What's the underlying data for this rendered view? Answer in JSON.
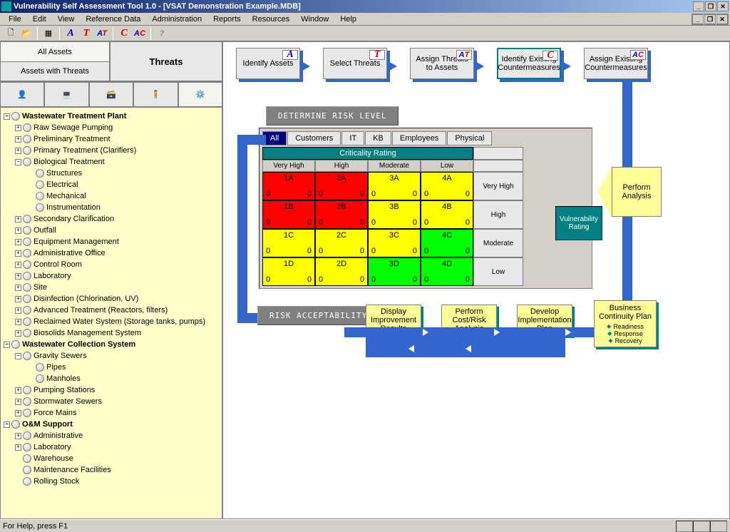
{
  "title": "Vulnerability Self Assessment Tool 1.0 - [VSAT Demonstration Example.MDB]",
  "menu": [
    "File",
    "Edit",
    "View",
    "Reference Data",
    "Administration",
    "Reports",
    "Resources",
    "Window",
    "Help"
  ],
  "toolbar_letters": [
    "A",
    "T",
    "AT",
    "C",
    "AC"
  ],
  "left_tabs": {
    "all_assets": "All Assets",
    "assets_with_threats": "Assets with Threats",
    "threats": "Threats"
  },
  "tree": [
    {
      "l": 0,
      "exp": "−",
      "bold": true,
      "t": "Wastewater Treatment Plant"
    },
    {
      "l": 1,
      "exp": "+",
      "t": "Raw Sewage Pumping"
    },
    {
      "l": 1,
      "exp": "+",
      "t": "Preliminary Treatment"
    },
    {
      "l": 1,
      "exp": "+",
      "t": "Primary Treatment (Clarifiers)"
    },
    {
      "l": 1,
      "exp": "−",
      "t": "Biological Treatment"
    },
    {
      "l": 2,
      "exp": "",
      "t": "Structures"
    },
    {
      "l": 2,
      "exp": "",
      "t": "Electrical"
    },
    {
      "l": 2,
      "exp": "",
      "t": "Mechanical"
    },
    {
      "l": 2,
      "exp": "",
      "t": "Instrumentation"
    },
    {
      "l": 1,
      "exp": "+",
      "t": "Secondary Clarification"
    },
    {
      "l": 1,
      "exp": "+",
      "t": "Outfall"
    },
    {
      "l": 1,
      "exp": "+",
      "t": "Equipment Management"
    },
    {
      "l": 1,
      "exp": "+",
      "t": "Administrative Office"
    },
    {
      "l": 1,
      "exp": "+",
      "t": "Control Room"
    },
    {
      "l": 1,
      "exp": "+",
      "t": "Laboratory"
    },
    {
      "l": 1,
      "exp": "+",
      "t": "Site"
    },
    {
      "l": 1,
      "exp": "+",
      "t": "Disinfection (Chlorination, UV)"
    },
    {
      "l": 1,
      "exp": "+",
      "t": "Advanced Treatment (Reactors, filters)"
    },
    {
      "l": 1,
      "exp": "+",
      "t": "Reclaimed Water System (Storage tanks, pumps)"
    },
    {
      "l": 1,
      "exp": "+",
      "t": "Biosolids Management System"
    },
    {
      "l": 0,
      "exp": "−",
      "bold": true,
      "t": "Wastewater Collection System"
    },
    {
      "l": 1,
      "exp": "−",
      "t": "Gravity Sewers"
    },
    {
      "l": 2,
      "exp": "",
      "t": "Pipes"
    },
    {
      "l": 2,
      "exp": "",
      "t": "Manholes"
    },
    {
      "l": 1,
      "exp": "+",
      "t": "Pumping Stations"
    },
    {
      "l": 1,
      "exp": "+",
      "t": "Stormwater Sewers"
    },
    {
      "l": 1,
      "exp": "+",
      "t": "Force Mains"
    },
    {
      "l": 0,
      "exp": "−",
      "bold": true,
      "t": "O&M Support"
    },
    {
      "l": 1,
      "exp": "+",
      "t": "Administrative"
    },
    {
      "l": 1,
      "exp": "+",
      "t": "Laboratory"
    },
    {
      "l": 1,
      "exp": "",
      "t": "Warehouse"
    },
    {
      "l": 1,
      "exp": "",
      "t": "Maintenance Facilities"
    },
    {
      "l": 1,
      "exp": "",
      "t": "Rolling Stock"
    }
  ],
  "workflow": {
    "steps": [
      {
        "label": "Identify Assets",
        "badge": "A",
        "bcls": "letter-a"
      },
      {
        "label": "Select Threats",
        "badge": "T",
        "bcls": "letter-t"
      },
      {
        "label": "Assign Threats to Assets",
        "badge": "AT",
        "bcls": "letter-at"
      },
      {
        "label": "Identify Existing Countermeasures",
        "badge": "C",
        "bcls": "letter-c",
        "selected": true
      },
      {
        "label": "Assign Existing Countermeasures",
        "badge": "AC",
        "bcls": "letter-ac"
      }
    ],
    "btn_determine": "DETERMINE RISK LEVEL",
    "btn_accept": "RISK ACCEPTABILITY",
    "vuln": "Vulnerability Rating",
    "perform": "Perform Analysis"
  },
  "matrix": {
    "tabs": [
      "All",
      "Customers",
      "IT",
      "KB",
      "Employees",
      "Physical"
    ],
    "title": "Criticality Rating",
    "col_headers": [
      "Very High",
      "High",
      "Moderate",
      "Low"
    ],
    "row_headers": [
      "Very High",
      "High",
      "Moderate",
      "Low"
    ],
    "cells": [
      [
        {
          "id": "1A",
          "c": "#ff0000"
        },
        {
          "id": "2A",
          "c": "#ff0000"
        },
        {
          "id": "3A",
          "c": "#ffff00"
        },
        {
          "id": "4A",
          "c": "#ffff00"
        }
      ],
      [
        {
          "id": "1B",
          "c": "#ff0000"
        },
        {
          "id": "2B",
          "c": "#ff0000"
        },
        {
          "id": "3B",
          "c": "#ffff00"
        },
        {
          "id": "4B",
          "c": "#ffff00"
        }
      ],
      [
        {
          "id": "1C",
          "c": "#ffff00"
        },
        {
          "id": "2C",
          "c": "#ffff00"
        },
        {
          "id": "3C",
          "c": "#ffff00"
        },
        {
          "id": "4C",
          "c": "#00ff00"
        }
      ],
      [
        {
          "id": "1D",
          "c": "#ffff00"
        },
        {
          "id": "2D",
          "c": "#ffff00"
        },
        {
          "id": "3D",
          "c": "#00ff00"
        },
        {
          "id": "4D",
          "c": "#00ff00"
        }
      ]
    ],
    "zero": "0"
  },
  "bottom_steps": [
    {
      "t": "Display Improvement Results"
    },
    {
      "t": "Perform Cost/Risk Analysis"
    },
    {
      "t": "Develop Implementation Plan"
    }
  ],
  "bcp": {
    "title": "Business Continuity Plan",
    "items": [
      "Readiness",
      "Response",
      "Recovery"
    ]
  },
  "status": "For Help, press F1"
}
